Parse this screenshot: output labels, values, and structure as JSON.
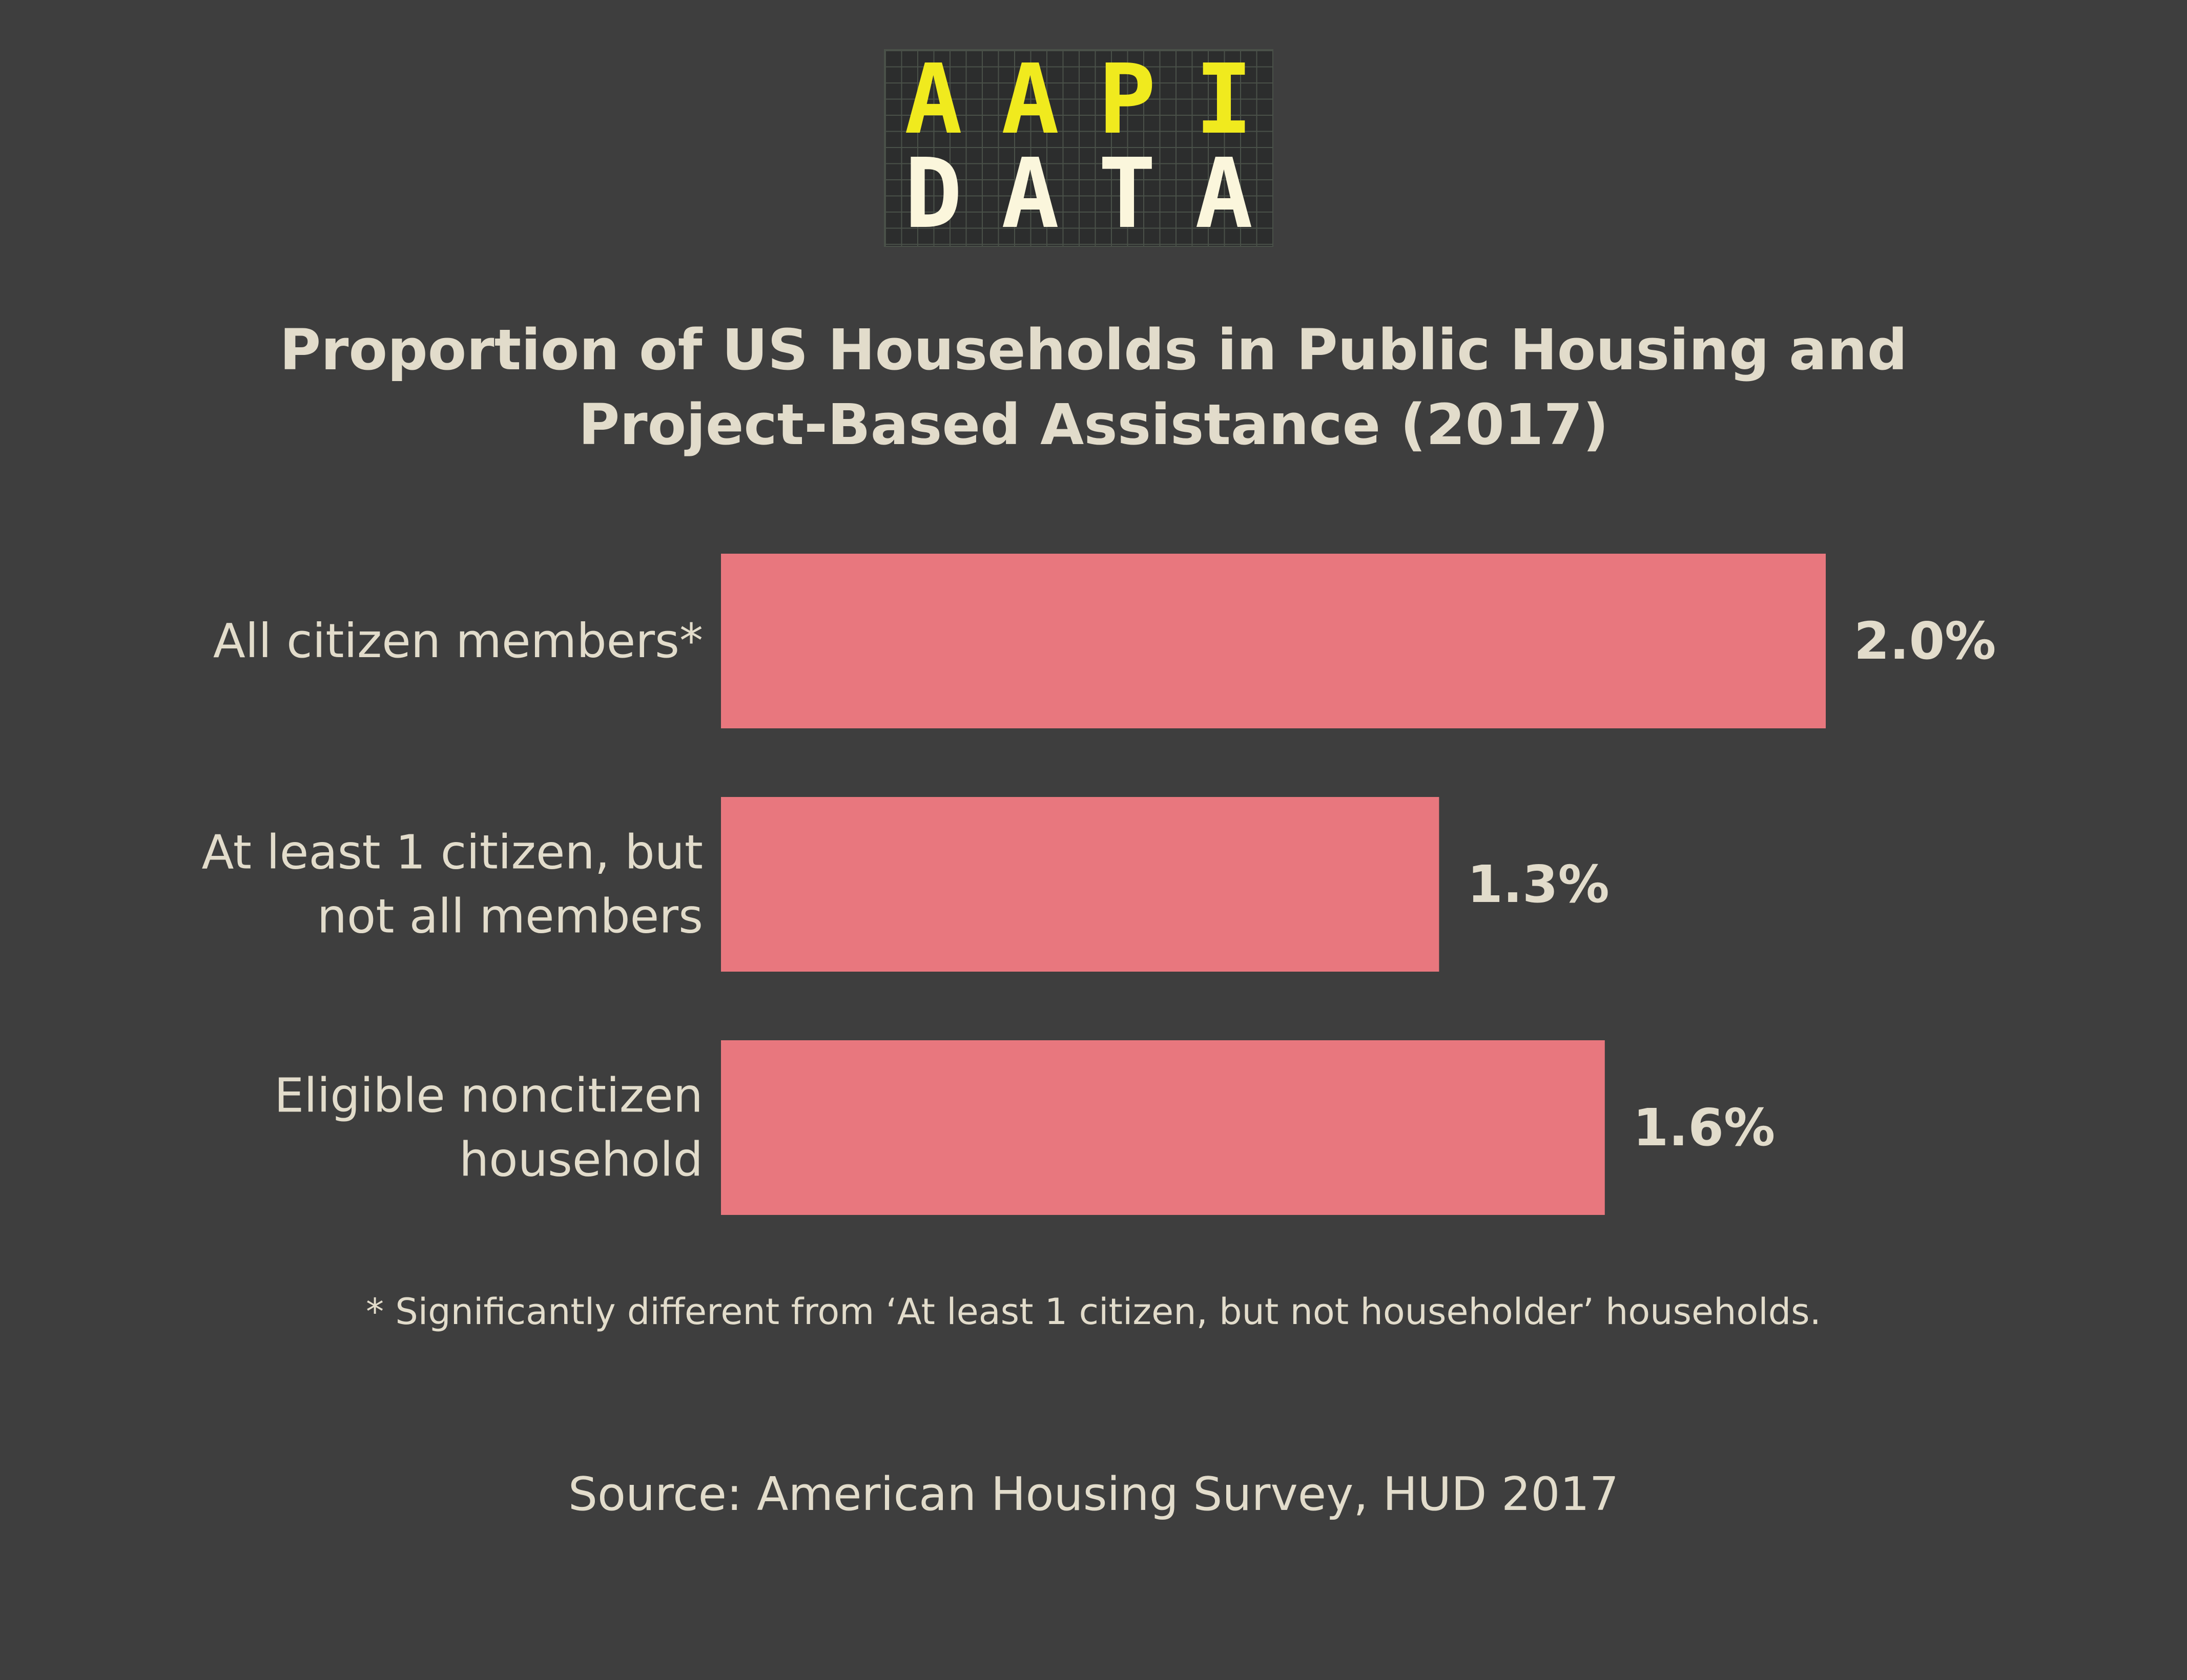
{
  "logo": {
    "top_letters": [
      "A",
      "A",
      "P",
      "I"
    ],
    "bottom_letters": [
      "D",
      "A",
      "T",
      "A"
    ]
  },
  "colors": {
    "background": "#3e3e3e",
    "bar": "#e8777e",
    "text": "#e2dccb",
    "accent": "#f0ea1e",
    "logo_text": "#fbf6dc"
  },
  "chart_data": {
    "type": "bar",
    "orientation": "horizontal",
    "title_lines": [
      "Proportion of US Households in Public Housing and",
      "Project-Based Assistance (2017)"
    ],
    "categories": [
      [
        "All citizen members*"
      ],
      [
        "At least 1 citizen, but",
        "not all members"
      ],
      [
        "Eligible noncitizen",
        "household"
      ]
    ],
    "values": [
      2.0,
      1.3,
      1.6
    ],
    "value_labels": [
      "2.0%",
      "1.3%",
      "1.6%"
    ],
    "unit": "%",
    "xlim": [
      0,
      2.0
    ],
    "grid": false,
    "footnote": "* Significantly different from ‘At least 1 citizen, but not householder’ households.",
    "source": "Source: American Housing Survey, HUD 2017"
  }
}
